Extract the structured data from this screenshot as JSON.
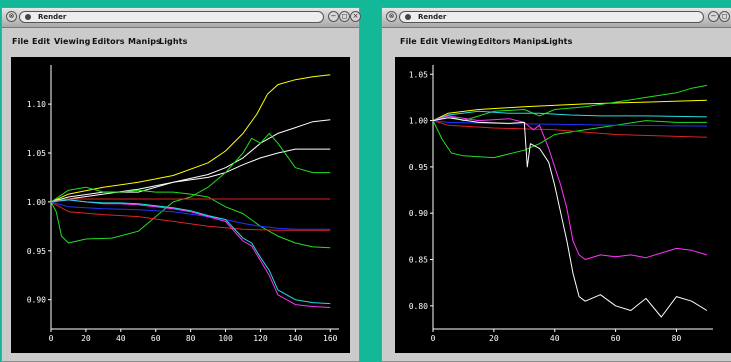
{
  "windows": [
    {
      "title": "Render",
      "menu": [
        "File",
        "Edit",
        "Viewing",
        "Editors",
        "Manips",
        "Lights"
      ]
    },
    {
      "title": "Render",
      "menu": [
        "File",
        "Edit",
        "Viewing",
        "Editors",
        "Manips",
        "Lights"
      ]
    }
  ],
  "chart_data": [
    {
      "type": "line",
      "xlim": [
        0,
        165
      ],
      "ylim": [
        0.87,
        1.14
      ],
      "x_ticks": [
        "0",
        "20",
        "40",
        "60",
        "80",
        "100",
        "120",
        "140",
        "160"
      ],
      "y_ticks": [
        "0.90",
        "0.95",
        "1.00",
        "1.05",
        "1.10"
      ],
      "series": [
        {
          "color": "#ffff00",
          "points": [
            [
              0,
              1.0
            ],
            [
              10,
              1.008
            ],
            [
              30,
              1.015
            ],
            [
              50,
              1.02
            ],
            [
              70,
              1.027
            ],
            [
              90,
              1.04
            ],
            [
              100,
              1.052
            ],
            [
              110,
              1.07
            ],
            [
              118,
              1.09
            ],
            [
              124,
              1.11
            ],
            [
              130,
              1.12
            ],
            [
              140,
              1.125
            ],
            [
              150,
              1.128
            ],
            [
              160,
              1.13
            ]
          ]
        },
        {
          "color": "#ffffff",
          "points": [
            [
              0,
              1.0
            ],
            [
              10,
              1.003
            ],
            [
              30,
              1.008
            ],
            [
              50,
              1.013
            ],
            [
              70,
              1.02
            ],
            [
              90,
              1.028
            ],
            [
              100,
              1.035
            ],
            [
              110,
              1.045
            ],
            [
              120,
              1.06
            ],
            [
              130,
              1.07
            ],
            [
              140,
              1.076
            ],
            [
              150,
              1.082
            ],
            [
              160,
              1.084
            ]
          ]
        },
        {
          "color": "#ffffff",
          "points": [
            [
              0,
              1.0
            ],
            [
              10,
              1.005
            ],
            [
              30,
              1.01
            ],
            [
              50,
              1.01
            ],
            [
              70,
              1.02
            ],
            [
              90,
              1.025
            ],
            [
              100,
              1.03
            ],
            [
              110,
              1.038
            ],
            [
              120,
              1.045
            ],
            [
              130,
              1.05
            ],
            [
              140,
              1.054
            ],
            [
              160,
              1.054
            ]
          ]
        },
        {
          "color": "#22dd22",
          "points": [
            [
              0,
              1.0
            ],
            [
              3,
              0.99
            ],
            [
              6,
              0.965
            ],
            [
              10,
              0.958
            ],
            [
              20,
              0.962
            ],
            [
              35,
              0.963
            ],
            [
              50,
              0.97
            ],
            [
              60,
              0.985
            ],
            [
              70,
              1.0
            ],
            [
              80,
              1.005
            ],
            [
              90,
              1.015
            ],
            [
              100,
              1.03
            ],
            [
              110,
              1.05
            ],
            [
              115,
              1.065
            ],
            [
              120,
              1.06
            ],
            [
              125,
              1.07
            ],
            [
              130,
              1.06
            ],
            [
              140,
              1.035
            ],
            [
              150,
              1.03
            ],
            [
              160,
              1.03
            ]
          ]
        },
        {
          "color": "#22dd22",
          "points": [
            [
              0,
              1.0
            ],
            [
              10,
              1.012
            ],
            [
              20,
              1.015
            ],
            [
              30,
              1.01
            ],
            [
              40,
              1.01
            ],
            [
              50,
              1.012
            ],
            [
              60,
              1.01
            ],
            [
              70,
              1.01
            ],
            [
              80,
              1.008
            ],
            [
              90,
              1.005
            ],
            [
              100,
              0.995
            ],
            [
              110,
              0.988
            ],
            [
              120,
              0.975
            ],
            [
              130,
              0.965
            ],
            [
              140,
              0.958
            ],
            [
              150,
              0.954
            ],
            [
              160,
              0.953
            ]
          ]
        },
        {
          "color": "#dd2222",
          "points": [
            [
              0,
              1.0
            ],
            [
              10,
              1.003
            ],
            [
              40,
              1.003
            ],
            [
              80,
              1.003
            ],
            [
              120,
              1.003
            ],
            [
              160,
              1.003
            ]
          ]
        },
        {
          "color": "#dd2222",
          "points": [
            [
              0,
              1.0
            ],
            [
              10,
              0.99
            ],
            [
              30,
              0.987
            ],
            [
              50,
              0.985
            ],
            [
              70,
              0.98
            ],
            [
              90,
              0.975
            ],
            [
              110,
              0.972
            ],
            [
              130,
              0.971
            ],
            [
              160,
              0.971
            ]
          ]
        },
        {
          "color": "#2233ff",
          "points": [
            [
              0,
              1.0
            ],
            [
              10,
              0.995
            ],
            [
              30,
              0.993
            ],
            [
              50,
              0.992
            ],
            [
              70,
              0.99
            ],
            [
              90,
              0.985
            ],
            [
              100,
              0.982
            ],
            [
              110,
              0.978
            ],
            [
              120,
              0.975
            ],
            [
              130,
              0.973
            ],
            [
              140,
              0.972
            ],
            [
              160,
              0.972
            ]
          ]
        },
        {
          "color": "#ff33ff",
          "points": [
            [
              0,
              1.0
            ],
            [
              10,
              1.002
            ],
            [
              20,
              1.0
            ],
            [
              30,
              0.998
            ],
            [
              40,
              0.998
            ],
            [
              50,
              0.997
            ],
            [
              60,
              0.995
            ],
            [
              70,
              0.993
            ],
            [
              80,
              0.99
            ],
            [
              90,
              0.985
            ],
            [
              100,
              0.98
            ],
            [
              110,
              0.96
            ],
            [
              115,
              0.955
            ],
            [
              120,
              0.94
            ],
            [
              125,
              0.925
            ],
            [
              130,
              0.905
            ],
            [
              140,
              0.895
            ],
            [
              150,
              0.893
            ],
            [
              160,
              0.892
            ]
          ]
        },
        {
          "color": "#22dddd",
          "points": [
            [
              0,
              1.0
            ],
            [
              10,
              1.002
            ],
            [
              20,
              1.0
            ],
            [
              30,
              0.999
            ],
            [
              40,
              0.999
            ],
            [
              50,
              0.998
            ],
            [
              60,
              0.996
            ],
            [
              70,
              0.994
            ],
            [
              80,
              0.991
            ],
            [
              90,
              0.986
            ],
            [
              100,
              0.982
            ],
            [
              110,
              0.963
            ],
            [
              115,
              0.958
            ],
            [
              120,
              0.943
            ],
            [
              125,
              0.93
            ],
            [
              130,
              0.91
            ],
            [
              140,
              0.9
            ],
            [
              150,
              0.897
            ],
            [
              160,
              0.896
            ]
          ]
        }
      ]
    },
    {
      "type": "line",
      "xlim": [
        0,
        92
      ],
      "ylim": [
        0.775,
        1.06
      ],
      "x_ticks": [
        "0",
        "20",
        "40",
        "60",
        "80"
      ],
      "y_ticks": [
        "0.80",
        "0.85",
        "0.90",
        "0.95",
        "1.00",
        "1.05"
      ],
      "series": [
        {
          "color": "#ffff00",
          "points": [
            [
              0,
              1.0
            ],
            [
              5,
              1.008
            ],
            [
              15,
              1.012
            ],
            [
              30,
              1.015
            ],
            [
              50,
              1.018
            ],
            [
              70,
              1.02
            ],
            [
              90,
              1.022
            ]
          ]
        },
        {
          "color": "#22dd22",
          "points": [
            [
              0,
              1.0
            ],
            [
              5,
              1.005
            ],
            [
              10,
              1.0
            ],
            [
              20,
              1.01
            ],
            [
              30,
              1.012
            ],
            [
              35,
              1.005
            ],
            [
              40,
              1.012
            ],
            [
              50,
              1.015
            ],
            [
              60,
              1.02
            ],
            [
              70,
              1.025
            ],
            [
              80,
              1.03
            ],
            [
              85,
              1.035
            ],
            [
              90,
              1.038
            ]
          ]
        },
        {
          "color": "#22dddd",
          "points": [
            [
              0,
              1.0
            ],
            [
              5,
              1.006
            ],
            [
              15,
              1.01
            ],
            [
              25,
              1.008
            ],
            [
              35,
              1.008
            ],
            [
              45,
              1.006
            ],
            [
              55,
              1.005
            ],
            [
              70,
              1.005
            ],
            [
              90,
              1.004
            ]
          ]
        },
        {
          "color": "#22dd22",
          "points": [
            [
              0,
              1.0
            ],
            [
              3,
              0.98
            ],
            [
              6,
              0.965
            ],
            [
              10,
              0.962
            ],
            [
              20,
              0.96
            ],
            [
              30,
              0.968
            ],
            [
              35,
              0.975
            ],
            [
              40,
              0.985
            ],
            [
              50,
              0.99
            ],
            [
              60,
              0.995
            ],
            [
              70,
              1.0
            ],
            [
              80,
              0.998
            ],
            [
              90,
              0.998
            ]
          ]
        },
        {
          "color": "#dd2222",
          "points": [
            [
              0,
              1.0
            ],
            [
              5,
              0.995
            ],
            [
              20,
              0.992
            ],
            [
              40,
              0.99
            ],
            [
              60,
              0.985
            ],
            [
              90,
              0.982
            ]
          ]
        },
        {
          "color": "#2233ff",
          "points": [
            [
              0,
              1.0
            ],
            [
              5,
              0.998
            ],
            [
              20,
              0.997
            ],
            [
              40,
              0.996
            ],
            [
              60,
              0.995
            ],
            [
              90,
              0.994
            ]
          ]
        },
        {
          "color": "#ff33ff",
          "points": [
            [
              0,
              1.0
            ],
            [
              5,
              1.005
            ],
            [
              15,
              1.0
            ],
            [
              25,
              1.002
            ],
            [
              30,
              0.998
            ],
            [
              33,
              0.99
            ],
            [
              35,
              0.995
            ],
            [
              38,
              0.97
            ],
            [
              40,
              0.95
            ],
            [
              42,
              0.93
            ],
            [
              44,
              0.905
            ],
            [
              46,
              0.87
            ],
            [
              48,
              0.855
            ],
            [
              50,
              0.85
            ],
            [
              55,
              0.855
            ],
            [
              60,
              0.853
            ],
            [
              65,
              0.855
            ],
            [
              70,
              0.852
            ],
            [
              75,
              0.857
            ],
            [
              80,
              0.862
            ],
            [
              85,
              0.86
            ],
            [
              90,
              0.855
            ]
          ]
        },
        {
          "color": "#ffffff",
          "points": [
            [
              0,
              1.0
            ],
            [
              5,
              1.003
            ],
            [
              15,
              0.998
            ],
            [
              25,
              0.997
            ],
            [
              30,
              0.998
            ],
            [
              31,
              0.95
            ],
            [
              32,
              0.975
            ],
            [
              35,
              0.97
            ],
            [
              38,
              0.955
            ],
            [
              40,
              0.93
            ],
            [
              42,
              0.9
            ],
            [
              44,
              0.87
            ],
            [
              46,
              0.835
            ],
            [
              48,
              0.81
            ],
            [
              50,
              0.805
            ],
            [
              55,
              0.812
            ],
            [
              60,
              0.8
            ],
            [
              65,
              0.795
            ],
            [
              70,
              0.808
            ],
            [
              75,
              0.788
            ],
            [
              80,
              0.81
            ],
            [
              85,
              0.805
            ],
            [
              90,
              0.795
            ]
          ]
        }
      ]
    }
  ]
}
